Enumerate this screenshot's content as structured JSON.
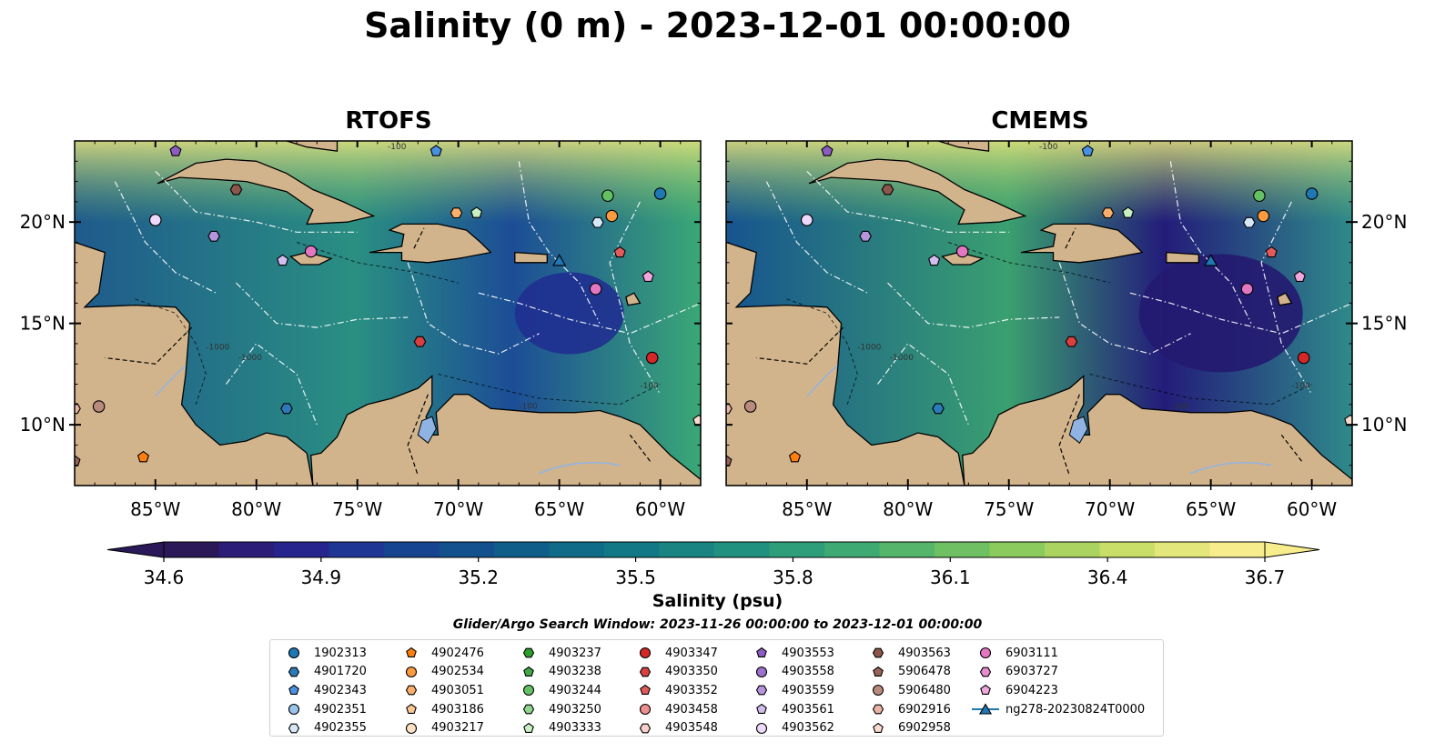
{
  "title": "Salinity (0 m) - 2023-12-01 00:00:00",
  "panels": [
    {
      "title": "RTOFS"
    },
    {
      "title": "CMEMS"
    }
  ],
  "map": {
    "lon_range": [
      -89,
      -58
    ],
    "lat_range": [
      7,
      24
    ],
    "lon_ticks": [
      "85°W",
      "80°W",
      "75°W",
      "70°W",
      "65°W",
      "60°W"
    ],
    "lon_tick_values": [
      -85,
      -80,
      -75,
      -70,
      -65,
      -60
    ],
    "lat_ticks": [
      "20°N",
      "15°N",
      "10°N"
    ],
    "lat_tick_values": [
      20,
      15,
      10
    ],
    "contour_labels": [
      "-100",
      "-1000",
      "-1000",
      "-100",
      "-100"
    ],
    "land_color": "#d2b48c",
    "lake_color": "#8fb4e3"
  },
  "colorbar": {
    "title": "Salinity (psu)",
    "min": 34.6,
    "max": 36.7,
    "ticks": [
      "34.6",
      "34.9",
      "35.2",
      "35.5",
      "35.8",
      "36.1",
      "36.4",
      "36.7"
    ],
    "colors": [
      "#2a1858",
      "#2b1d78",
      "#26258e",
      "#1f3694",
      "#174490",
      "#12518d",
      "#0f5e8a",
      "#0f6b88",
      "#137885",
      "#1a8483",
      "#21917f",
      "#2e9d7a",
      "#3ea973",
      "#54b56b",
      "#6ec062",
      "#8bca5d",
      "#aad45f",
      "#c8de69",
      "#e3e67a",
      "#f7ed8c"
    ]
  },
  "search_window": "Glider/Argo Search Window: 2023-11-26 00:00:00 to 2023-12-01 00:00:00",
  "legend": [
    [
      {
        "label": "1902313",
        "marker": "circle",
        "color": "#1f77b4"
      },
      {
        "label": "4901720",
        "marker": "hexagon",
        "color": "#2b7bba"
      },
      {
        "label": "4902343",
        "marker": "pentagon",
        "color": "#4a90e2"
      },
      {
        "label": "4902351",
        "marker": "circle",
        "color": "#9ac3ea"
      },
      {
        "label": "4902355",
        "marker": "hexagon",
        "color": "#d6e8f7"
      }
    ],
    [
      {
        "label": "4902476",
        "marker": "pentagon",
        "color": "#ff7f0e"
      },
      {
        "label": "4902534",
        "marker": "circle",
        "color": "#fb9a3e"
      },
      {
        "label": "4903051",
        "marker": "hexagon",
        "color": "#fcae6b"
      },
      {
        "label": "4903186",
        "marker": "pentagon",
        "color": "#fdc793"
      },
      {
        "label": "4903217",
        "marker": "circle",
        "color": "#fee0c4"
      }
    ],
    [
      {
        "label": "4903237",
        "marker": "hexagon",
        "color": "#2ca02c"
      },
      {
        "label": "4903238",
        "marker": "pentagon",
        "color": "#41a846"
      },
      {
        "label": "4903244",
        "marker": "circle",
        "color": "#63c063"
      },
      {
        "label": "4903250",
        "marker": "hexagon",
        "color": "#8fd48f"
      },
      {
        "label": "4903333",
        "marker": "pentagon",
        "color": "#c8f0c2"
      }
    ],
    [
      {
        "label": "4903347",
        "marker": "circle",
        "color": "#d62728"
      },
      {
        "label": "4903350",
        "marker": "hexagon",
        "color": "#dc3f3f"
      },
      {
        "label": "4903352",
        "marker": "pentagon",
        "color": "#e35a5a"
      },
      {
        "label": "4903458",
        "marker": "circle",
        "color": "#ee8f8f"
      },
      {
        "label": "4903548",
        "marker": "hexagon",
        "color": "#f8d0cc"
      }
    ],
    [
      {
        "label": "4903553",
        "marker": "pentagon",
        "color": "#8c5cc0"
      },
      {
        "label": "4903558",
        "marker": "circle",
        "color": "#9b72cc"
      },
      {
        "label": "4903559",
        "marker": "hexagon",
        "color": "#b596dc"
      },
      {
        "label": "4903561",
        "marker": "pentagon",
        "color": "#d3bcef"
      },
      {
        "label": "4903562",
        "marker": "circle",
        "color": "#eed8fb"
      }
    ],
    [
      {
        "label": "4903563",
        "marker": "hexagon",
        "color": "#8c564b"
      },
      {
        "label": "5906478",
        "marker": "pentagon",
        "color": "#9a6459"
      },
      {
        "label": "5906480",
        "marker": "circle",
        "color": "#bb8a7e"
      },
      {
        "label": "6902916",
        "marker": "hexagon",
        "color": "#e8b4a4"
      },
      {
        "label": "6902958",
        "marker": "pentagon",
        "color": "#f8dcd2"
      }
    ],
    [
      {
        "label": "6903111",
        "marker": "circle",
        "color": "#e377c2"
      },
      {
        "label": "6903727",
        "marker": "hexagon",
        "color": "#e98ccd"
      },
      {
        "label": "6904223",
        "marker": "pentagon",
        "color": "#f0a8dc"
      },
      {
        "label": "ng278-20230824T0000",
        "marker": "triangle-line",
        "color": "#1f77b4"
      }
    ]
  ],
  "floats": [
    {
      "lon": -60.0,
      "lat": 21.4,
      "marker": "circle",
      "color": "#1f77b4"
    },
    {
      "lon": -78.5,
      "lat": 10.8,
      "marker": "hexagon",
      "color": "#2b7bba"
    },
    {
      "lon": -71.1,
      "lat": 23.5,
      "marker": "pentagon",
      "color": "#4a90e2"
    },
    {
      "lon": -63.1,
      "lat": 19.98,
      "marker": "hexagon",
      "color": "#d6e8f7"
    },
    {
      "lon": -85.6,
      "lat": 8.4,
      "marker": "pentagon",
      "color": "#ff7f0e"
    },
    {
      "lon": -62.4,
      "lat": 20.3,
      "marker": "circle",
      "color": "#fb9a3e"
    },
    {
      "lon": -70.1,
      "lat": 20.45,
      "marker": "hexagon",
      "color": "#fcae6b"
    },
    {
      "lon": -62.6,
      "lat": 21.3,
      "marker": "circle",
      "color": "#63c063"
    },
    {
      "lon": -69.1,
      "lat": 20.45,
      "marker": "pentagon",
      "color": "#c8f0c2"
    },
    {
      "lon": -60.4,
      "lat": 13.3,
      "marker": "circle",
      "color": "#d62728"
    },
    {
      "lon": -71.9,
      "lat": 14.1,
      "marker": "hexagon",
      "color": "#dc3f3f"
    },
    {
      "lon": -62.0,
      "lat": 18.5,
      "marker": "pentagon",
      "color": "#e35a5a"
    },
    {
      "lon": -84.0,
      "lat": 23.5,
      "marker": "pentagon",
      "color": "#8c5cc0"
    },
    {
      "lon": -82.1,
      "lat": 19.3,
      "marker": "hexagon",
      "color": "#b596dc"
    },
    {
      "lon": -78.7,
      "lat": 18.1,
      "marker": "pentagon",
      "color": "#d3bcef"
    },
    {
      "lon": -85.0,
      "lat": 20.1,
      "marker": "circle",
      "color": "#eed8fb"
    },
    {
      "lon": -81.0,
      "lat": 21.6,
      "marker": "hexagon",
      "color": "#8c564b"
    },
    {
      "lon": -89.0,
      "lat": 8.2,
      "marker": "pentagon",
      "color": "#9a6459"
    },
    {
      "lon": -87.8,
      "lat": 10.9,
      "marker": "circle",
      "color": "#bb8a7e"
    },
    {
      "lon": -89.0,
      "lat": 10.8,
      "marker": "hexagon",
      "color": "#e8b4a4"
    },
    {
      "lon": -58.1,
      "lat": 10.2,
      "marker": "pentagon",
      "color": "#f8dcd2"
    },
    {
      "lon": -77.3,
      "lat": 18.55,
      "marker": "circle",
      "color": "#e377c2"
    },
    {
      "lon": -63.2,
      "lat": 16.7,
      "marker": "circle",
      "color": "#e377c2"
    },
    {
      "lon": -60.6,
      "lat": 17.3,
      "marker": "pentagon",
      "color": "#f0a8dc"
    },
    {
      "lon": -65.0,
      "lat": 18.1,
      "marker": "triangle",
      "color": "#1f77b4"
    }
  ]
}
